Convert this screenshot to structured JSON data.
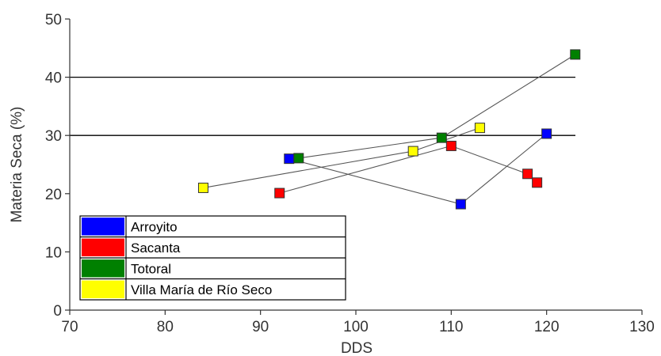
{
  "chart_data": {
    "type": "scatter",
    "title": "",
    "xlabel": "DDS",
    "ylabel": "Materia Seca (%)",
    "xlim": [
      70,
      130
    ],
    "ylim": [
      0,
      50
    ],
    "x_ticks": [
      "70",
      "80",
      "90",
      "100",
      "110",
      "120",
      "130"
    ],
    "y_ticks": [
      "0",
      "10",
      "20",
      "30",
      "40",
      "50"
    ],
    "reference_lines": [
      30,
      40
    ],
    "grid": false,
    "legend_position": "bottom-left",
    "series": [
      {
        "name": "Arroyito",
        "color": "#0000ff",
        "points": [
          {
            "x": 93,
            "y": 26
          },
          {
            "x": 111,
            "y": 18.2
          },
          {
            "x": 120,
            "y": 30.3
          }
        ]
      },
      {
        "name": "Sacanta",
        "color": "#ff0000",
        "points": [
          {
            "x": 92,
            "y": 20.1
          },
          {
            "x": 110,
            "y": 28.2
          },
          {
            "x": 118,
            "y": 23.4
          },
          {
            "x": 119,
            "y": 21.9
          }
        ]
      },
      {
        "name": "Totoral",
        "color": "#008000",
        "points": [
          {
            "x": 94,
            "y": 26.1
          },
          {
            "x": 109,
            "y": 29.6
          },
          {
            "x": 123,
            "y": 43.9
          }
        ]
      },
      {
        "name": "Villa María de Río Seco",
        "color": "#ffff00",
        "points": [
          {
            "x": 84,
            "y": 21
          },
          {
            "x": 106,
            "y": 27.3
          },
          {
            "x": 113,
            "y": 31.3
          }
        ]
      }
    ]
  }
}
